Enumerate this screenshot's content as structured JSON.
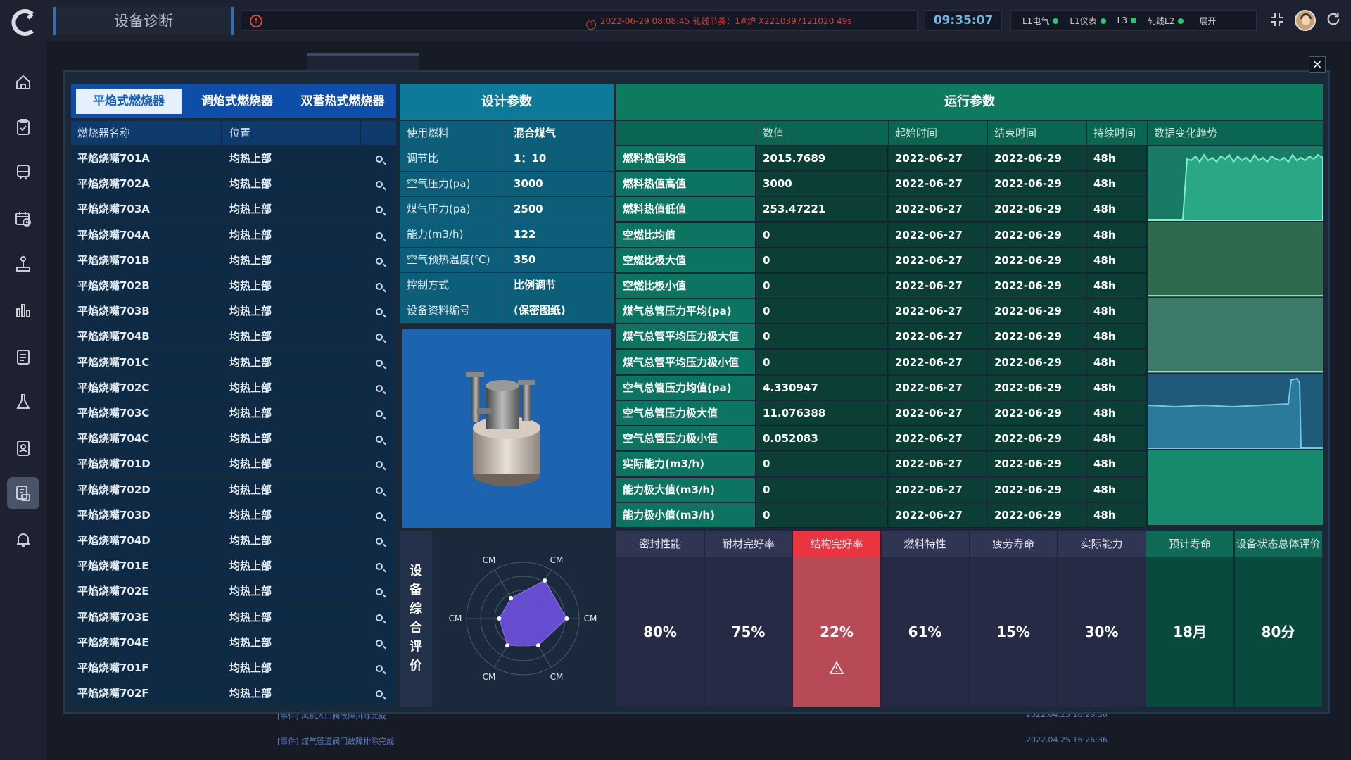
{
  "app": {
    "title": "设备诊断"
  },
  "topbar": {
    "alarm_message": "2022-06-29 08:08:45 轧线节奏：1#炉 X2210397121020 49s",
    "clock": "09:35:07",
    "status": [
      {
        "label": "L1电气",
        "color": "#2ec46a"
      },
      {
        "label": "L1仪表",
        "color": "#2ec46a"
      },
      {
        "label": "L3",
        "color": "#2ec46a"
      },
      {
        "label": "轧线L2",
        "color": "#2ec46a"
      }
    ],
    "expand_label": "展开"
  },
  "sidebar": {
    "icons": [
      "home-icon",
      "clipboard-check-icon",
      "train-icon",
      "calendar-clock-icon",
      "joystick-icon",
      "bar-chart-icon",
      "report-icon",
      "flask-icon",
      "badge-icon",
      "device-diagnosis-icon",
      "bell-icon"
    ],
    "active_index": 9
  },
  "background_events": [
    {
      "text": "[事件] 风机入口阀故障排除完成",
      "time": "2022.04.25 16:26:36"
    },
    {
      "text": "[事件] 煤气管道阀门故障排除完成",
      "time": "2022.04.25 16:26:36"
    }
  ],
  "burner_tabs": [
    {
      "label": "平焰式燃烧器",
      "active": true
    },
    {
      "label": "调焰式燃烧器",
      "active": false
    },
    {
      "label": "双蓄热式燃烧器",
      "active": false
    }
  ],
  "burner_table": {
    "headers": [
      "燃烧器名称",
      "位置"
    ],
    "rows": [
      {
        "name": "平焰烧嘴701A",
        "pos": "均热上部"
      },
      {
        "name": "平焰烧嘴702A",
        "pos": "均热上部"
      },
      {
        "name": "平焰烧嘴703A",
        "pos": "均热上部"
      },
      {
        "name": "平焰烧嘴704A",
        "pos": "均热上部"
      },
      {
        "name": "平焰烧嘴701B",
        "pos": "均热上部"
      },
      {
        "name": "平焰烧嘴702B",
        "pos": "均热上部"
      },
      {
        "name": "平焰烧嘴703B",
        "pos": "均热上部"
      },
      {
        "name": "平焰烧嘴704B",
        "pos": "均热上部"
      },
      {
        "name": "平焰烧嘴701C",
        "pos": "均热上部"
      },
      {
        "name": "平焰烧嘴702C",
        "pos": "均热上部"
      },
      {
        "name": "平焰烧嘴703C",
        "pos": "均热上部"
      },
      {
        "name": "平焰烧嘴704C",
        "pos": "均热上部"
      },
      {
        "name": "平焰烧嘴701D",
        "pos": "均热上部"
      },
      {
        "name": "平焰烧嘴702D",
        "pos": "均热上部"
      },
      {
        "name": "平焰烧嘴703D",
        "pos": "均热上部"
      },
      {
        "name": "平焰烧嘴704D",
        "pos": "均热上部"
      },
      {
        "name": "平焰烧嘴701E",
        "pos": "均热上部"
      },
      {
        "name": "平焰烧嘴702E",
        "pos": "均热上部"
      },
      {
        "name": "平焰烧嘴703E",
        "pos": "均热上部"
      },
      {
        "name": "平焰烧嘴704E",
        "pos": "均热上部"
      },
      {
        "name": "平焰烧嘴701F",
        "pos": "均热上部"
      },
      {
        "name": "平焰烧嘴702F",
        "pos": "均热上部"
      }
    ]
  },
  "design": {
    "title": "设计参数",
    "params": [
      {
        "k": "使用燃料",
        "v": "混合煤气"
      },
      {
        "k": "调节比",
        "v": "1：10"
      },
      {
        "k": "空气压力(pa)",
        "v": "3000"
      },
      {
        "k": "煤气压力(pa)",
        "v": "2500"
      },
      {
        "k": "能力(m3/h)",
        "v": "122"
      },
      {
        "k": "空气预热温度(℃)",
        "v": "350"
      },
      {
        "k": "控制方式",
        "v": "比例调节"
      },
      {
        "k": "设备资料编号",
        "v": "(保密图纸)"
      }
    ]
  },
  "evaluation": {
    "title": "设备综合评价",
    "radar_labels": [
      "CM",
      "CM",
      "CM",
      "CM",
      "CM",
      "CM"
    ],
    "radar_values": [
      0.42,
      0.78,
      0.78,
      0.55,
      0.55,
      0.42
    ]
  },
  "run": {
    "title": "运行参数",
    "headers": [
      "",
      "数值",
      "起始时间",
      "结束时间",
      "持续时间",
      "数据变化趋势"
    ],
    "rows": [
      {
        "name": "燃料热值均值",
        "value": "2015.7689",
        "start": "2022-06-27",
        "end": "2022-06-29",
        "dur": "48h"
      },
      {
        "name": "燃料热值高值",
        "value": "3000",
        "start": "2022-06-27",
        "end": "2022-06-29",
        "dur": "48h"
      },
      {
        "name": "燃料热值低值",
        "value": "253.47221",
        "start": "2022-06-27",
        "end": "2022-06-29",
        "dur": "48h"
      },
      {
        "name": "空燃比均值",
        "value": "0",
        "start": "2022-06-27",
        "end": "2022-06-29",
        "dur": "48h"
      },
      {
        "name": "空燃比极大值",
        "value": "0",
        "start": "2022-06-27",
        "end": "2022-06-29",
        "dur": "48h"
      },
      {
        "name": "空燃比极小值",
        "value": "0",
        "start": "2022-06-27",
        "end": "2022-06-29",
        "dur": "48h"
      },
      {
        "name": "煤气总管压力平均(pa)",
        "value": "0",
        "start": "2022-06-27",
        "end": "2022-06-29",
        "dur": "48h"
      },
      {
        "name": "煤气总管平均压力极大值",
        "value": "0",
        "start": "2022-06-27",
        "end": "2022-06-29",
        "dur": "48h"
      },
      {
        "name": "煤气总管平均压力极小值",
        "value": "0",
        "start": "2022-06-27",
        "end": "2022-06-29",
        "dur": "48h"
      },
      {
        "name": "空气总管压力均值(pa)",
        "value": "4.330947",
        "start": "2022-06-27",
        "end": "2022-06-29",
        "dur": "48h"
      },
      {
        "name": "空气总管压力极大值",
        "value": "11.076388",
        "start": "2022-06-27",
        "end": "2022-06-29",
        "dur": "48h"
      },
      {
        "name": "空气总管压力极小值",
        "value": "0.052083",
        "start": "2022-06-27",
        "end": "2022-06-29",
        "dur": "48h"
      },
      {
        "name": "实际能力(m3/h)",
        "value": "0",
        "start": "2022-06-27",
        "end": "2022-06-29",
        "dur": "48h"
      },
      {
        "name": "能力极大值(m3/h)",
        "value": "0",
        "start": "2022-06-27",
        "end": "2022-06-29",
        "dur": "48h"
      },
      {
        "name": "能力极小值(m3/h)",
        "value": "0",
        "start": "2022-06-27",
        "end": "2022-06-29",
        "dur": "48h"
      }
    ]
  },
  "scores": [
    {
      "label": "密封性能",
      "value": "80%",
      "style": "normal"
    },
    {
      "label": "耐材完好率",
      "value": "75%",
      "style": "normal"
    },
    {
      "label": "结构完好率",
      "value": "22%",
      "style": "alert"
    },
    {
      "label": "燃料特性",
      "value": "61%",
      "style": "normal"
    },
    {
      "label": "疲劳寿命",
      "value": "15%",
      "style": "normal"
    },
    {
      "label": "实际能力",
      "value": "30%",
      "style": "normal"
    },
    {
      "label": "预计寿命",
      "value": "18月",
      "style": "green"
    },
    {
      "label": "设备状态总体评价",
      "value": "80分",
      "style": "green"
    }
  ],
  "colors": {
    "alarm": "#d2403a",
    "active_tab": "#0f4ea8",
    "design_header": "#0e7a9a",
    "run_header": "#0e7b60",
    "alert_cell": "#e8353f"
  }
}
